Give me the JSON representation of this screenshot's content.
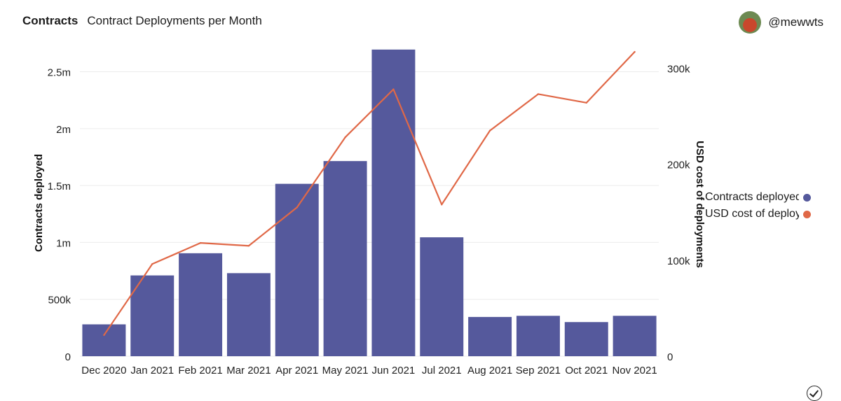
{
  "header": {
    "section": "Contracts",
    "title": "Contract Deployments per Month"
  },
  "user": {
    "handle": "@mewwts"
  },
  "legend": [
    {
      "label": "Contracts deployed",
      "color": "#55599c"
    },
    {
      "label": "USD cost of deployments",
      "color": "#e06847"
    }
  ],
  "chart_data": {
    "type": "bar+line",
    "categories": [
      "Dec 2020",
      "Jan 2021",
      "Feb 2021",
      "Mar 2021",
      "Apr 2021",
      "May 2021",
      "Jun 2021",
      "Jul 2021",
      "Aug 2021",
      "Sep 2021",
      "Oct 2021",
      "Nov 2021"
    ],
    "series": [
      {
        "name": "Contracts deployed",
        "type": "bar",
        "axis": "left",
        "color": "#55599c",
        "values": [
          280000,
          710000,
          905000,
          730000,
          1515000,
          1715000,
          2695000,
          1045000,
          345000,
          355000,
          300000,
          355000
        ]
      },
      {
        "name": "USD cost of deployments",
        "type": "line",
        "axis": "right",
        "color": "#e06847",
        "values": [
          22000,
          96000,
          118000,
          115000,
          155000,
          228000,
          278000,
          158000,
          235000,
          273000,
          264000,
          317000
        ]
      }
    ],
    "y_left": {
      "label": "Contracts deployed",
      "min": 0,
      "max": 2700000,
      "ticks": [
        0,
        500000,
        1000000,
        1500000,
        2000000,
        2500000
      ],
      "tick_labels": [
        "0",
        "500k",
        "1m",
        "1.5m",
        "2m",
        "2.5m"
      ]
    },
    "y_right": {
      "label": "USD cost of deployments",
      "min": 0,
      "max": 320000,
      "ticks": [
        0,
        100000,
        200000,
        300000
      ],
      "tick_labels": [
        "0",
        "100k",
        "200k",
        "300k"
      ]
    },
    "grid": true,
    "legend_position": "right"
  }
}
